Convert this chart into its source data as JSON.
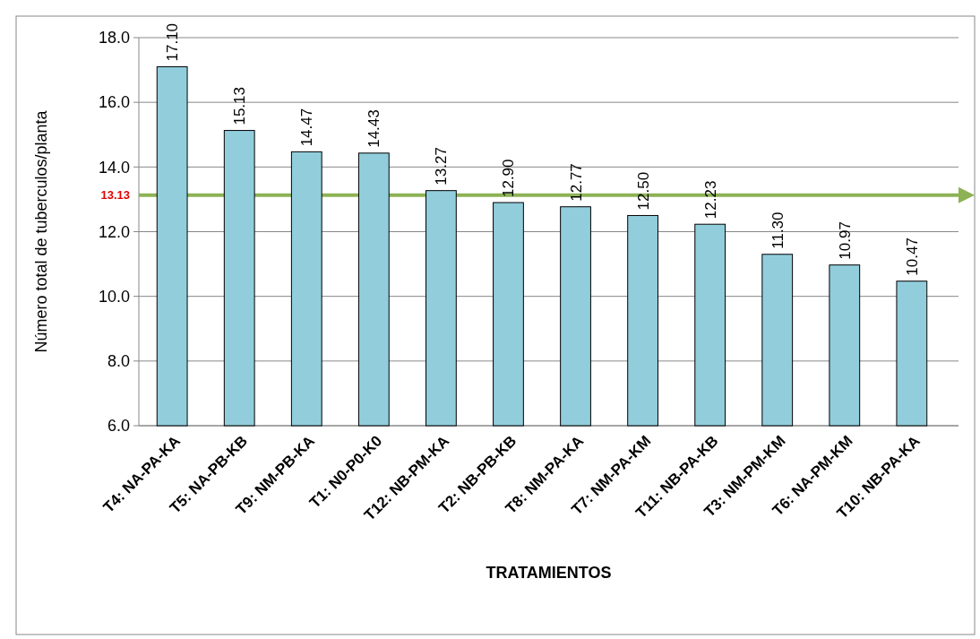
{
  "chart_data": {
    "type": "bar",
    "xlabel": "TRATAMIENTOS",
    "ylabel": "Número total de tuberculos/planta",
    "categories": [
      "T4: NA-PA-KA",
      "T5: NA-PB-KB",
      "T9: NM-PB-KA",
      "T1: N0-P0-K0",
      "T12: NB-PM-KA",
      "T2: NB-PB-KB",
      "T8: NM-PA-KA",
      "T7: NM-PA-KM",
      "T11: NB-PA-KB",
      "T3: NM-PM-KM",
      "T6: NA-PM-KM",
      "T10: NB-PA-KA"
    ],
    "values": [
      17.1,
      15.13,
      14.47,
      14.43,
      13.27,
      12.9,
      12.77,
      12.5,
      12.23,
      11.3,
      10.97,
      10.47
    ],
    "color": "#92cddc",
    "ylim": [
      6,
      18
    ],
    "yticks": [
      {
        "value": 6,
        "label": "6.0"
      },
      {
        "value": 8,
        "label": "8.0"
      },
      {
        "value": 10,
        "label": "10.0"
      },
      {
        "value": 12,
        "label": "12.0"
      },
      {
        "value": 14,
        "label": "14.0"
      },
      {
        "value": 16,
        "label": "16.0"
      },
      {
        "value": 18,
        "label": "18.0"
      }
    ],
    "value_labels": [
      "17.10",
      "15.13",
      "14.47",
      "14.43",
      "13.27",
      "12.90",
      "12.77",
      "12.50",
      "12.23",
      "11.30",
      "10.97",
      "10.47"
    ],
    "grid": "y",
    "ref_lines": [
      {
        "axis": "y",
        "value": 13.13,
        "label": "13.13",
        "color": "#8db255"
      }
    ]
  }
}
